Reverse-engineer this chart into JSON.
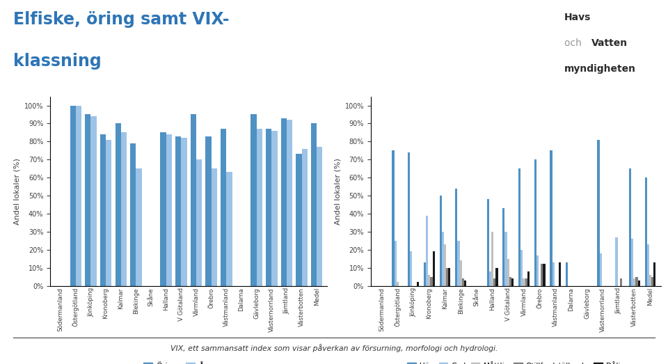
{
  "title_line1": "Elfiske, öring samt VIX-",
  "title_line2": "klassning",
  "subtitle_footer": "VIX, ett sammansatt index som visar påverkan av försurning, morfologi och hydrologi.",
  "categories": [
    "Södermanland",
    "Östergötland",
    "Jönköping",
    "Kronoberg",
    "Kalmar",
    "Blekinge",
    "Skåne",
    "Halland",
    "V Götaland",
    "Värmland",
    "Örebro",
    "Västmanland",
    "Dalarna",
    "Gävleborg",
    "Västernorrland",
    "Jämtland",
    "Västerbotten",
    "Medel"
  ],
  "chart1": {
    "ylabel": "Andel lokaler (%)",
    "series": {
      "Öring": [
        0,
        1.0,
        0.95,
        0.84,
        0.9,
        0.79,
        0,
        0.85,
        0.83,
        0.95,
        0.83,
        0.87,
        0,
        0.95,
        0.87,
        0.93,
        0.73,
        0.9
      ],
      "Årsungar": [
        0,
        1.0,
        0.94,
        0.81,
        0.85,
        0.65,
        0,
        0.84,
        0.82,
        0.7,
        0.65,
        0.63,
        0,
        0.87,
        0.86,
        0.92,
        0.76,
        0.77
      ]
    },
    "colors": {
      "Öring": "#4F91C3",
      "Årsungar": "#9DC3E6"
    }
  },
  "chart2": {
    "ylabel": "Andel lokaler (%)",
    "series": {
      "Hög": [
        0,
        0.75,
        0.74,
        0.13,
        0.5,
        0.54,
        0,
        0.48,
        0.43,
        0.65,
        0.7,
        0.75,
        0.13,
        0,
        0.81,
        0,
        0.65,
        0.6
      ],
      "God": [
        0,
        0.25,
        0.19,
        0.39,
        0.3,
        0.25,
        0,
        0.08,
        0.3,
        0.2,
        0.17,
        0.13,
        0,
        0,
        0.18,
        0.27,
        0.26,
        0.23
      ],
      "Måttlig": [
        0,
        0.02,
        0,
        0.06,
        0.23,
        0.14,
        0,
        0.3,
        0.15,
        0.04,
        0,
        0,
        0,
        0,
        0,
        0,
        0.04,
        0.06
      ],
      "Otillfredställande": [
        0,
        0,
        0,
        0.05,
        0.1,
        0.04,
        0,
        0.04,
        0.05,
        0.04,
        0.12,
        0,
        0,
        0,
        0,
        0.04,
        0.05,
        0.05
      ],
      "Dålig": [
        0,
        0,
        0.02,
        0.19,
        0.1,
        0.03,
        0,
        0.1,
        0.04,
        0.08,
        0.12,
        0.13,
        0,
        0,
        0,
        0,
        0.03,
        0.13
      ]
    },
    "colors": {
      "Hög": "#4F91C3",
      "God": "#9DC3E6",
      "Måttlig": "#C0C0C0",
      "Otillfredställande": "#808080",
      "Dålig": "#1A1A1A"
    }
  },
  "background_color": "#FFFFFF",
  "title_color": "#2E75B6",
  "axis_label_color": "#404040",
  "tick_color": "#404040"
}
